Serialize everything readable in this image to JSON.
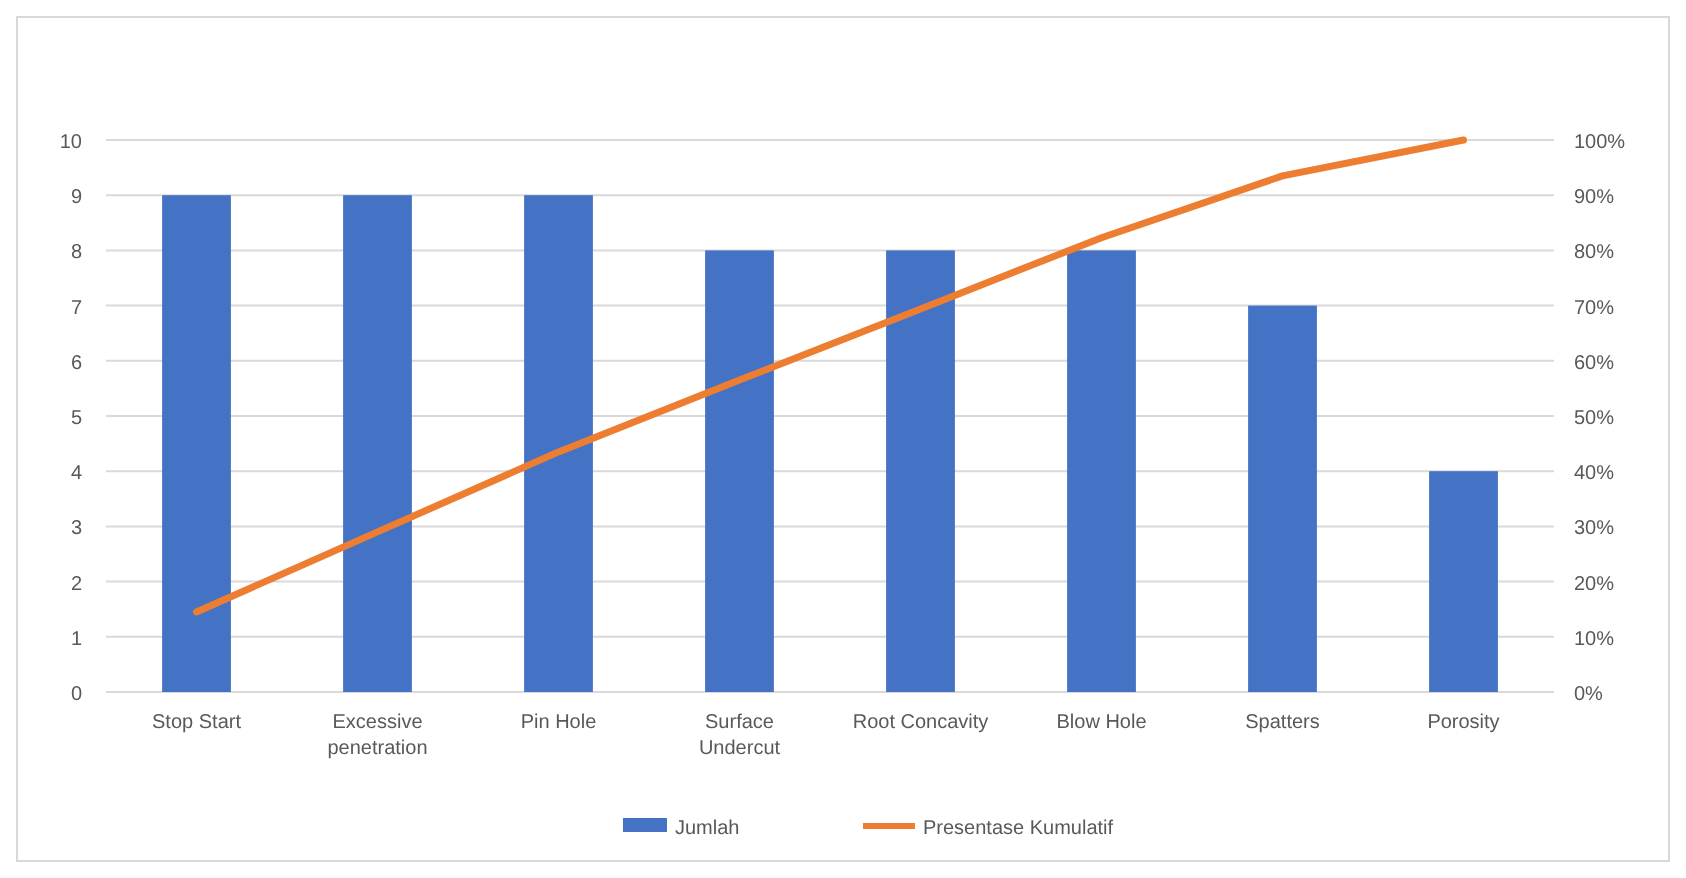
{
  "chart_data": {
    "type": "bar",
    "categories": [
      "Stop Start",
      "Excessive penetration",
      "Pin Hole",
      "Surface Undercut",
      "Root Concavity",
      "Blow Hole",
      "Spatters",
      "Porosity"
    ],
    "series": [
      {
        "name": "Jumlah",
        "color": "#4472c4",
        "values": [
          9,
          9,
          9,
          8,
          8,
          8,
          7,
          4
        ]
      },
      {
        "name": "Presentase Kumulatif",
        "type": "line",
        "axis": "y2",
        "color": "#ed7d31",
        "values": [
          14.5,
          29,
          43.5,
          56.5,
          69.4,
          82.3,
          93.5,
          100
        ]
      }
    ],
    "ylim": [
      0,
      10
    ],
    "yticks": [
      0,
      1,
      2,
      3,
      4,
      5,
      6,
      7,
      8,
      9,
      10
    ],
    "y2lim": [
      0,
      100
    ],
    "y2ticks": [
      {
        "value": 0,
        "label": "0%"
      },
      {
        "value": 10,
        "label": "10%"
      },
      {
        "value": 20,
        "label": "20%"
      },
      {
        "value": 30,
        "label": "30%"
      },
      {
        "value": 40,
        "label": "40%"
      },
      {
        "value": 50,
        "label": "50%"
      },
      {
        "value": 60,
        "label": "60%"
      },
      {
        "value": 70,
        "label": "70%"
      },
      {
        "value": 80,
        "label": "80%"
      },
      {
        "value": 90,
        "label": "90%"
      },
      {
        "value": 100,
        "label": "100%"
      }
    ],
    "grid": "y",
    "legend": "bottom",
    "marker": "none",
    "line_style": "solid"
  }
}
